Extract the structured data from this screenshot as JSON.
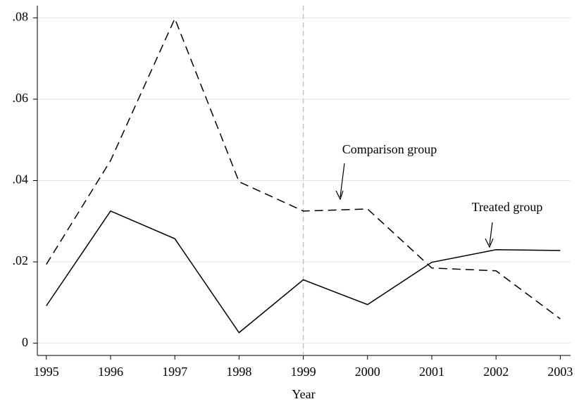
{
  "chart_data": {
    "type": "line",
    "x_label": "Year",
    "x": [
      1995,
      1996,
      1997,
      1998,
      1999,
      2000,
      2001,
      2002,
      2003
    ],
    "series": [
      {
        "name": "Comparison group",
        "color": "#000000",
        "dash": "dashed",
        "values": [
          0.0194,
          0.0449,
          0.0798,
          0.0397,
          0.0325,
          0.033,
          0.0185,
          0.0178,
          0.006
        ]
      },
      {
        "name": "Treated group",
        "color": "#000000",
        "dash": "solid",
        "values": [
          0.0092,
          0.0325,
          0.0257,
          0.0026,
          0.0156,
          0.0095,
          0.0199,
          0.023,
          0.0228
        ]
      }
    ],
    "xlim": [
      1994.86,
      2003.16
    ],
    "xticks": [
      1995,
      1996,
      1997,
      1998,
      1999,
      2000,
      2001,
      2002,
      2003
    ],
    "ylim": [
      -0.003,
      0.083
    ],
    "yticks": [
      0,
      {
        "value": 0.02,
        "label": ".02"
      },
      {
        "value": 0.04,
        "label": ".04"
      },
      {
        "value": 0.06,
        "label": ".06"
      },
      {
        "value": 0.08,
        "label": ".08"
      }
    ],
    "grid": true,
    "vline": 1999,
    "vline_color": "#bbbbbb"
  }
}
